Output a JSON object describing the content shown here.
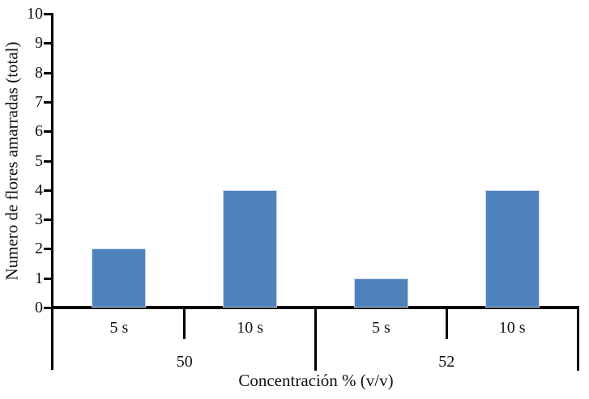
{
  "chart_data": {
    "type": "bar",
    "title": "",
    "ylabel": "Numero de flores amarradas (total)",
    "xlabel": "Concentración % (v/v)",
    "ylim": [
      0,
      10
    ],
    "yticks": [
      0,
      1,
      2,
      3,
      4,
      5,
      6,
      7,
      8,
      9,
      10
    ],
    "grid": false,
    "legend": null,
    "categories_level1": [
      "5 s",
      "10 s",
      "5 s",
      "10 s"
    ],
    "categories_level2": [
      "50",
      "52"
    ],
    "groups": [
      {
        "label": "50",
        "categories": [
          "5 s",
          "10 s"
        ],
        "values": [
          2,
          4
        ]
      },
      {
        "label": "52",
        "categories": [
          "5 s",
          "10 s"
        ],
        "values": [
          1,
          4
        ]
      }
    ],
    "series": [
      {
        "name": "Numero de flores amarradas",
        "values": [
          2,
          4,
          1,
          4
        ]
      }
    ],
    "colors": {
      "bar_fill": "#4f81bd",
      "bar_edge": "#c9d7ea",
      "axis": "#000000",
      "text": "#111111"
    }
  }
}
